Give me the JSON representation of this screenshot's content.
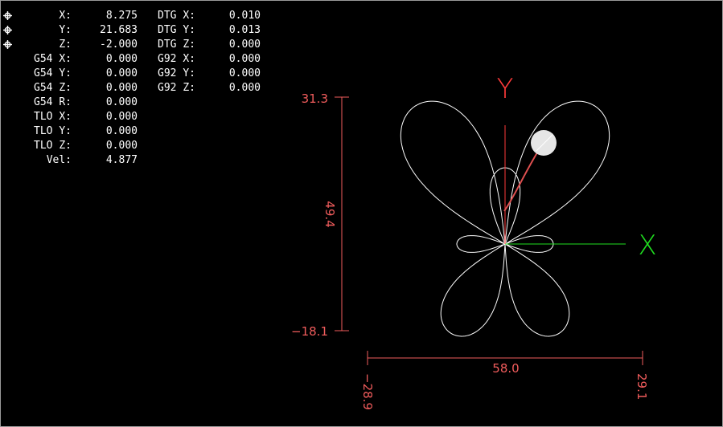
{
  "dro": {
    "rows": [
      {
        "label": "X:",
        "value": "8.275",
        "label2": "DTG X:",
        "value2": "0.010",
        "homed": true
      },
      {
        "label": "Y:",
        "value": "21.683",
        "label2": "DTG Y:",
        "value2": "0.013",
        "homed": true
      },
      {
        "label": "Z:",
        "value": "-2.000",
        "label2": "DTG Z:",
        "value2": "0.000",
        "homed": true
      },
      {
        "label": "G54 X:",
        "value": "0.000",
        "label2": "G92 X:",
        "value2": "0.000"
      },
      {
        "label": "G54 Y:",
        "value": "0.000",
        "label2": "G92 Y:",
        "value2": "0.000"
      },
      {
        "label": "G54 Z:",
        "value": "0.000",
        "label2": "G92 Z:",
        "value2": "0.000"
      },
      {
        "label": "G54 R:",
        "value": "0.000"
      },
      {
        "label": "TLO X:",
        "value": "0.000"
      },
      {
        "label": "TLO Y:",
        "value": "0.000"
      },
      {
        "label": "TLO Z:",
        "value": "0.000"
      },
      {
        "label": "Vel:",
        "value": "4.877"
      }
    ]
  },
  "preview": {
    "axis_x_label": "X",
    "axis_y_label": "Y",
    "y_extent": {
      "max": "31.3",
      "min": "−18.1",
      "size": "49.4"
    },
    "x_extent": {
      "min": "−28.9",
      "max": "29.1",
      "size": "58.0"
    }
  },
  "colors": {
    "background": "#000000",
    "text": "#ffffff",
    "path": "#ffffff",
    "dimension": "#f05c5c",
    "axis_x": "#20e020",
    "axis_y": "#ff3a3a",
    "traversed": "#e05050",
    "tool": "#e6e6e6"
  },
  "icons": {
    "homed": "home-icon"
  }
}
